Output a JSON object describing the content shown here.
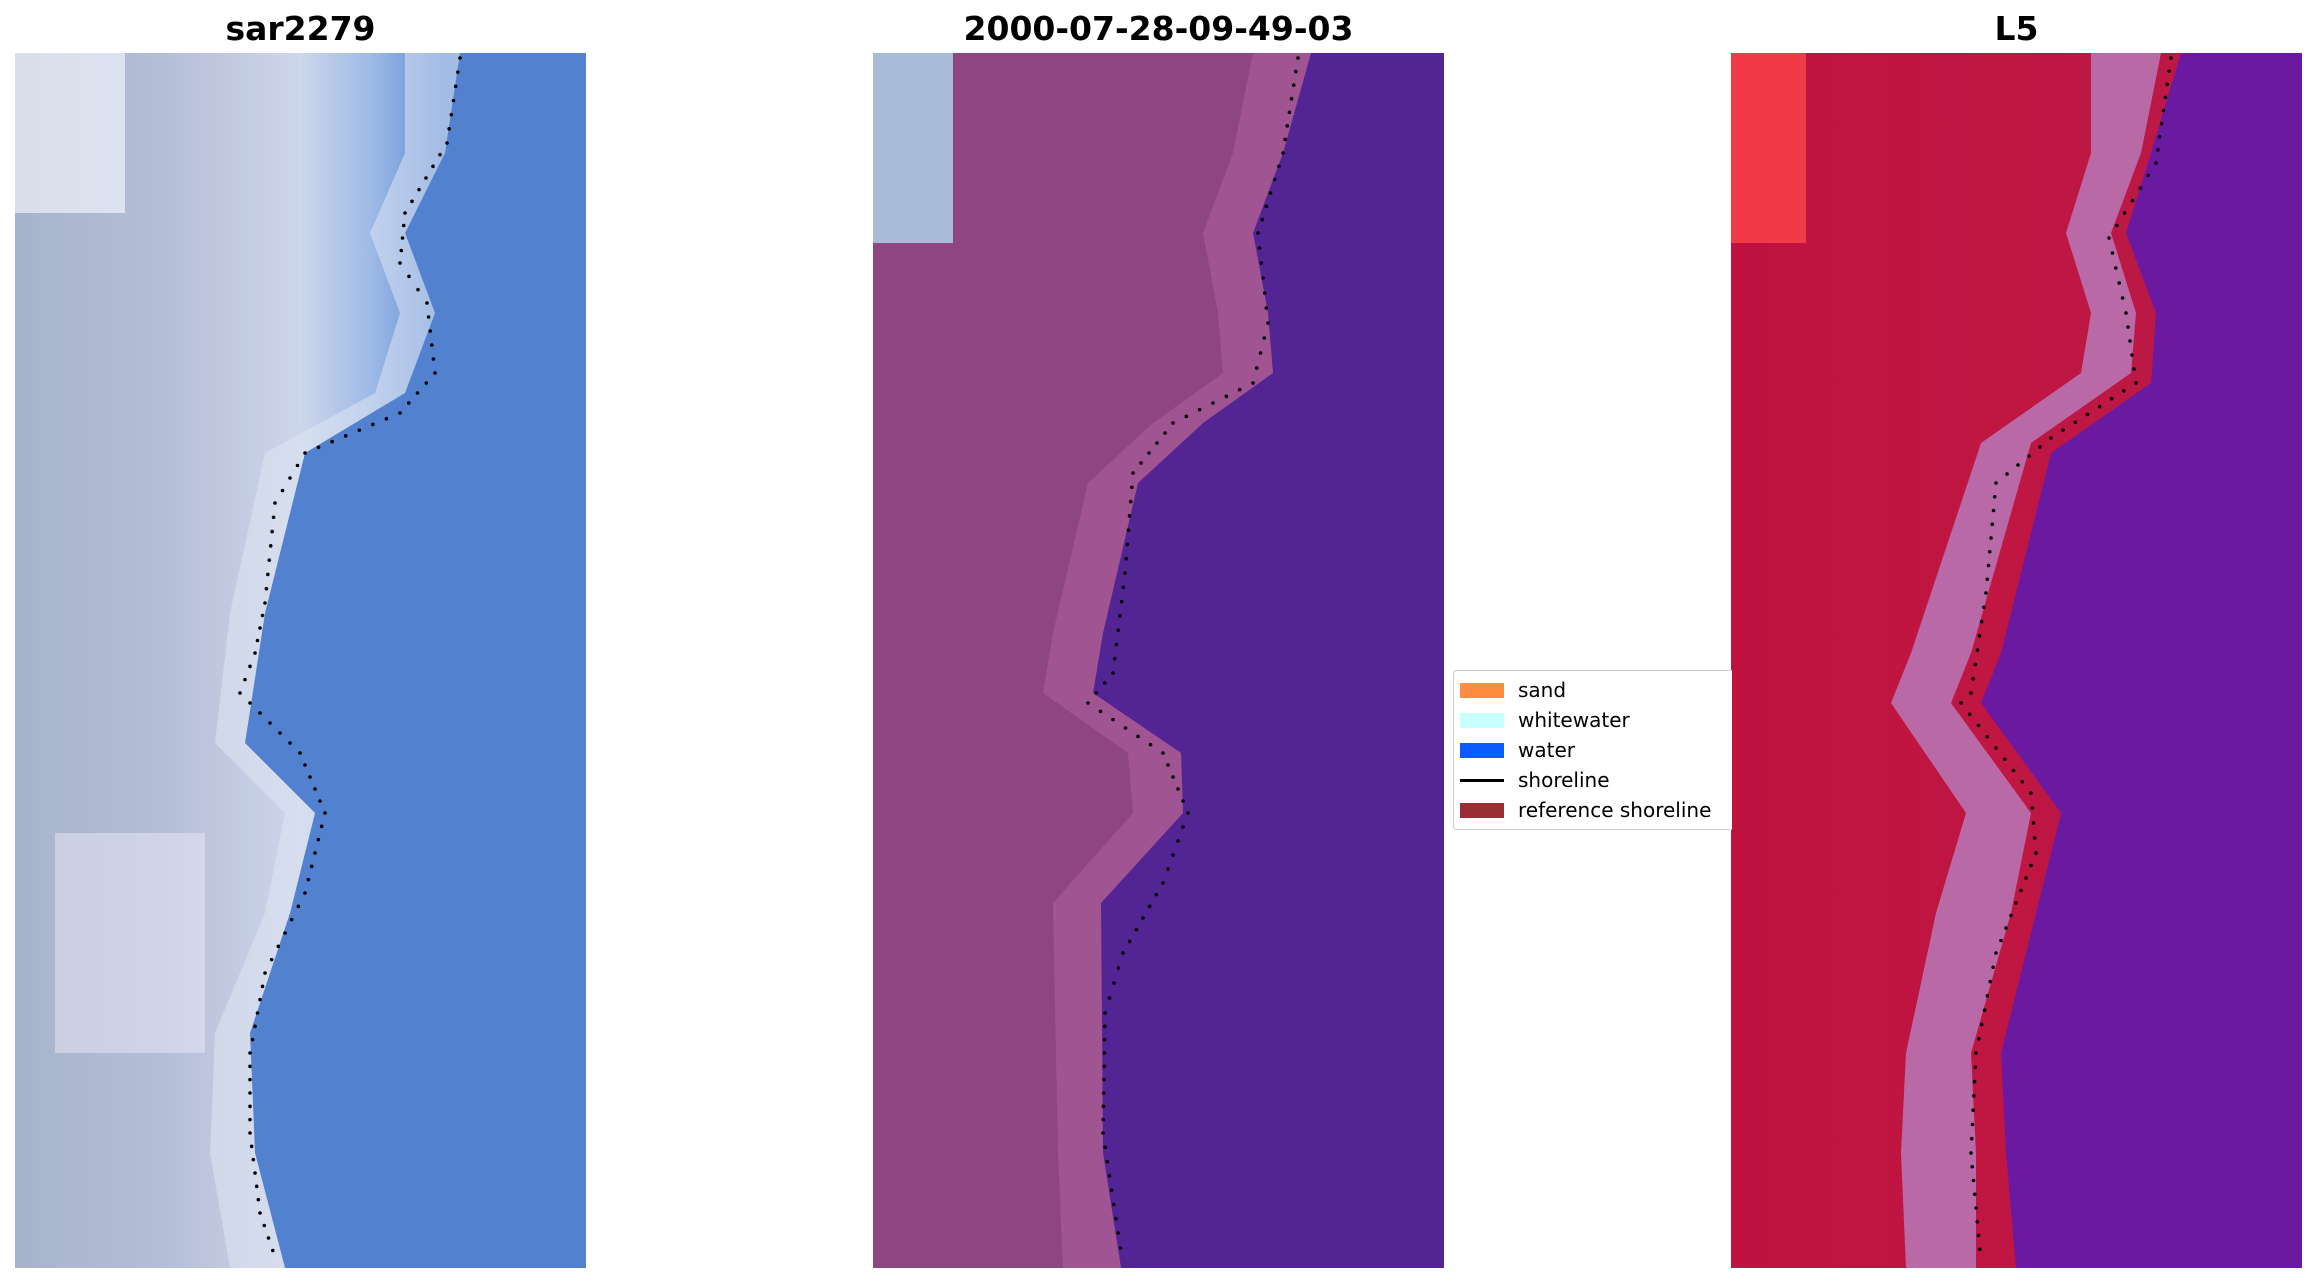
{
  "panels": [
    {
      "title": "sar2279"
    },
    {
      "title": "2000-07-28-09-49-03"
    },
    {
      "title": "L5"
    }
  ],
  "legend": {
    "items": [
      {
        "label": "sand",
        "kind": "patch",
        "color": "#ff8c40"
      },
      {
        "label": "whitewater",
        "kind": "patch",
        "color": "#c8ffff"
      },
      {
        "label": "water",
        "kind": "patch",
        "color": "#0a5cff"
      },
      {
        "label": "shoreline",
        "kind": "line",
        "color": "#000000"
      },
      {
        "label": "reference shoreline",
        "kind": "patch",
        "color": "#9b2d35"
      }
    ]
  },
  "colors": {
    "rgb_land": "#9aa6c4",
    "rgb_surf": "#dfe6f3",
    "rgb_water": "#4f7ccc",
    "class_land": "#8e4683",
    "class_water": "#532493",
    "index_land": "#c0143e",
    "index_edge": "#b96aa6",
    "index_water": "#6a1aa1",
    "shoreline_dots": "#000000"
  }
}
